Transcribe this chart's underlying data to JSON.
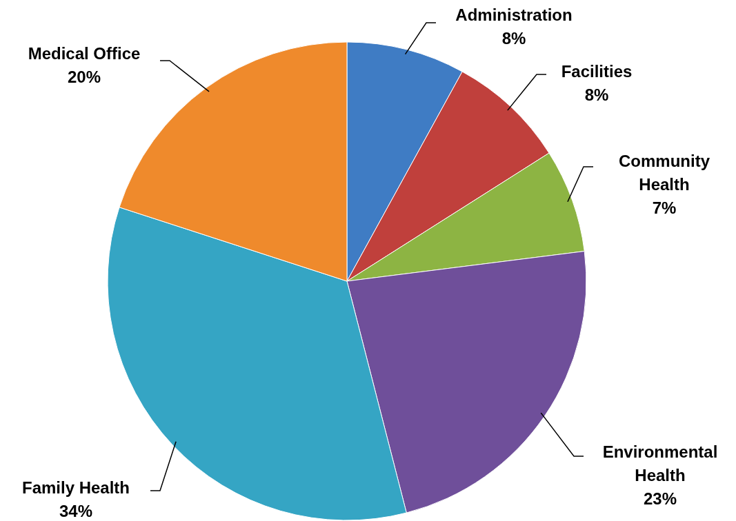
{
  "chart_data": {
    "type": "pie",
    "categories": [
      "Administration",
      "Facilities",
      "Community Health",
      "Environmental Health",
      "Family Health",
      "Medical Office"
    ],
    "values": [
      8,
      8,
      7,
      23,
      34,
      20
    ],
    "colors": [
      "#3f7cc4",
      "#c0403c",
      "#8db443",
      "#6f4f9a",
      "#35a5c4",
      "#ef8a2c"
    ],
    "value_labels": [
      "8%",
      "8%",
      "7%",
      "23%",
      "34%",
      "20%"
    ]
  }
}
